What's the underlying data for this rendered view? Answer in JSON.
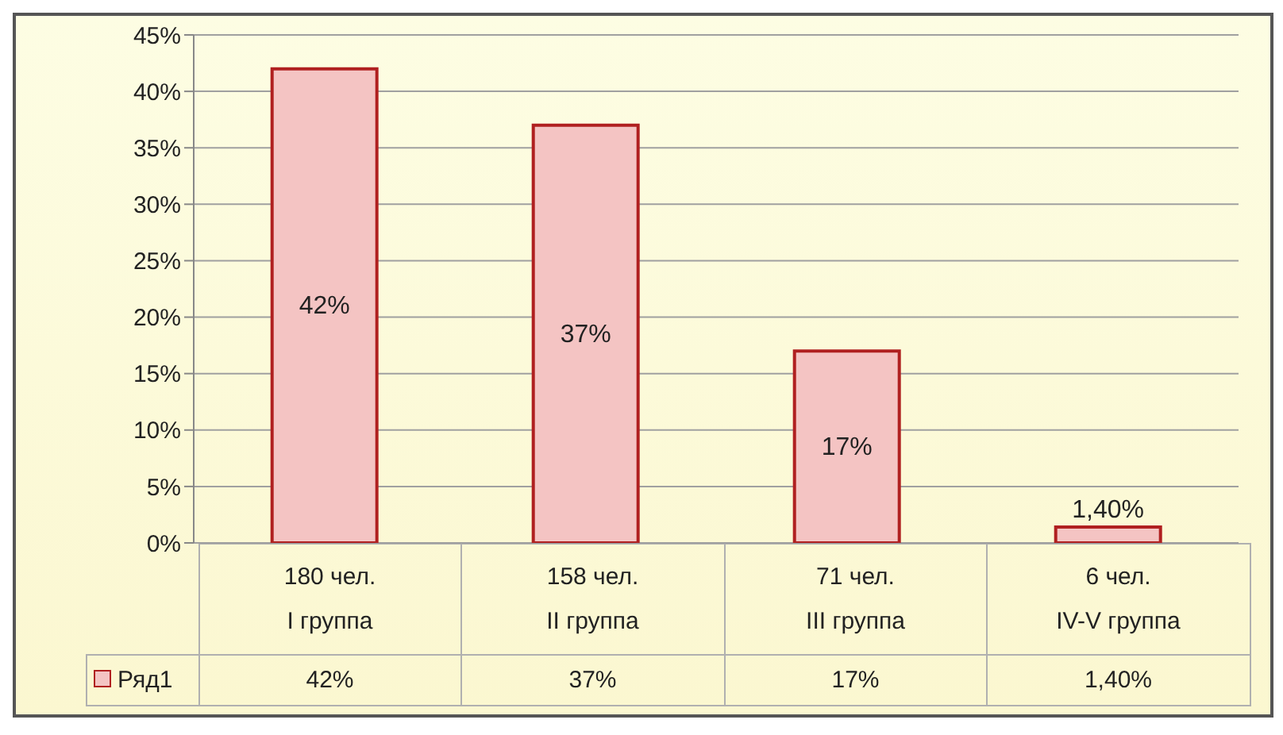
{
  "chart_data": {
    "type": "bar",
    "categories": [
      "180 чел.\nI группа",
      "158 чел.\nII группа",
      "71 чел.\nIII группа",
      "6 чел.\nIV-V группа"
    ],
    "series": [
      {
        "name": "Ряд1",
        "color": "#f4c4c3",
        "values": [
          42,
          37,
          17,
          1.4
        ],
        "value_labels": [
          "42%",
          "37%",
          "17%",
          "1,40%"
        ]
      }
    ],
    "ylim": [
      0,
      45
    ],
    "yticks": [
      {
        "value": 0,
        "label": "0%"
      },
      {
        "value": 5,
        "label": "5%"
      },
      {
        "value": 10,
        "label": "10%"
      },
      {
        "value": 15,
        "label": "15%"
      },
      {
        "value": 20,
        "label": "20%"
      },
      {
        "value": 25,
        "label": "25%"
      },
      {
        "value": 30,
        "label": "30%"
      },
      {
        "value": 35,
        "label": "35%"
      },
      {
        "value": 40,
        "label": "40%"
      },
      {
        "value": 45,
        "label": "45%"
      }
    ],
    "grid": "y",
    "legend": "bottom"
  }
}
